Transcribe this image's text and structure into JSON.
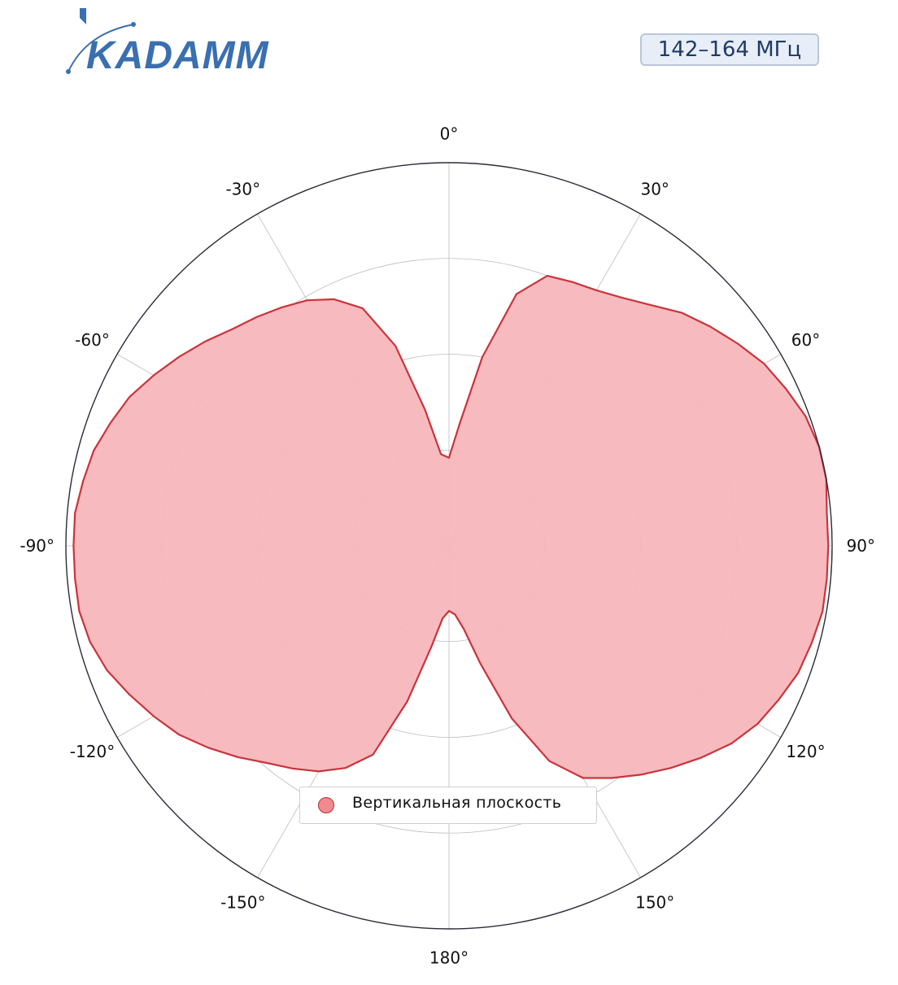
{
  "header": {
    "brand": "KADAMM",
    "band_label": "142–164 МГц"
  },
  "colors": {
    "brand": "#3a6fb0",
    "fill": "#f7b6ba",
    "line": "#c9343c",
    "grid": "#bdbdbd",
    "frame": "#2b2b3a"
  },
  "chart_data": {
    "type": "polar-area",
    "title": "",
    "orientation": "0° at top, clockwise",
    "r_range": [
      0,
      1
    ],
    "rings": [
      0.25,
      0.5,
      0.75,
      1.0
    ],
    "grid": true,
    "angle_ticks": [
      {
        "angle": 0,
        "label": "0°"
      },
      {
        "angle": 30,
        "label": "30°"
      },
      {
        "angle": 60,
        "label": "60°"
      },
      {
        "angle": 90,
        "label": "90°"
      },
      {
        "angle": 120,
        "label": "120°"
      },
      {
        "angle": 150,
        "label": "150°"
      },
      {
        "angle": 180,
        "label": "180°"
      },
      {
        "angle": -150,
        "label": "-150°"
      },
      {
        "angle": -120,
        "label": "-120°"
      },
      {
        "angle": -90,
        "label": "-90°"
      },
      {
        "angle": -60,
        "label": "-60°"
      },
      {
        "angle": -30,
        "label": "-30°"
      }
    ],
    "legend": {
      "position": "bottom-center",
      "label": "Вертикальная плоскость"
    },
    "series": [
      {
        "name": "Вертикальная плоскость",
        "points": [
          [
            0,
            0.23
          ],
          [
            5,
            0.32
          ],
          [
            10,
            0.5
          ],
          [
            15,
            0.68
          ],
          [
            20,
            0.75
          ],
          [
            25,
            0.76
          ],
          [
            30,
            0.77
          ],
          [
            35,
            0.79
          ],
          [
            40,
            0.82
          ],
          [
            45,
            0.86
          ],
          [
            50,
            0.89
          ],
          [
            55,
            0.92
          ],
          [
            60,
            0.95
          ],
          [
            65,
            0.97
          ],
          [
            70,
            0.99
          ],
          [
            75,
            1.0
          ],
          [
            80,
            1.0
          ],
          [
            85,
            0.99
          ],
          [
            90,
            0.99
          ],
          [
            95,
            0.99
          ],
          [
            100,
            0.99
          ],
          [
            105,
            0.98
          ],
          [
            110,
            0.97
          ],
          [
            115,
            0.95
          ],
          [
            120,
            0.93
          ],
          [
            125,
            0.9
          ],
          [
            130,
            0.86
          ],
          [
            135,
            0.82
          ],
          [
            140,
            0.78
          ],
          [
            145,
            0.74
          ],
          [
            150,
            0.7
          ],
          [
            155,
            0.62
          ],
          [
            160,
            0.48
          ],
          [
            165,
            0.32
          ],
          [
            170,
            0.22
          ],
          [
            175,
            0.18
          ],
          [
            180,
            0.17
          ],
          [
            -175,
            0.19
          ],
          [
            -170,
            0.27
          ],
          [
            -165,
            0.42
          ],
          [
            -160,
            0.58
          ],
          [
            -155,
            0.64
          ],
          [
            -150,
            0.68
          ],
          [
            -145,
            0.71
          ],
          [
            -140,
            0.74
          ],
          [
            -135,
            0.78
          ],
          [
            -130,
            0.82
          ],
          [
            -125,
            0.86
          ],
          [
            -120,
            0.89
          ],
          [
            -115,
            0.92
          ],
          [
            -110,
            0.95
          ],
          [
            -105,
            0.97
          ],
          [
            -100,
            0.98
          ],
          [
            -95,
            0.98
          ],
          [
            -90,
            0.98
          ],
          [
            -85,
            0.98
          ],
          [
            -80,
            0.97
          ],
          [
            -75,
            0.96
          ],
          [
            -70,
            0.94
          ],
          [
            -65,
            0.92
          ],
          [
            -60,
            0.89
          ],
          [
            -55,
            0.86
          ],
          [
            -50,
            0.83
          ],
          [
            -45,
            0.8
          ],
          [
            -40,
            0.78
          ],
          [
            -35,
            0.76
          ],
          [
            -30,
            0.74
          ],
          [
            -25,
            0.71
          ],
          [
            -20,
            0.66
          ],
          [
            -15,
            0.54
          ],
          [
            -10,
            0.36
          ],
          [
            -5,
            0.24
          ]
        ]
      }
    ]
  }
}
